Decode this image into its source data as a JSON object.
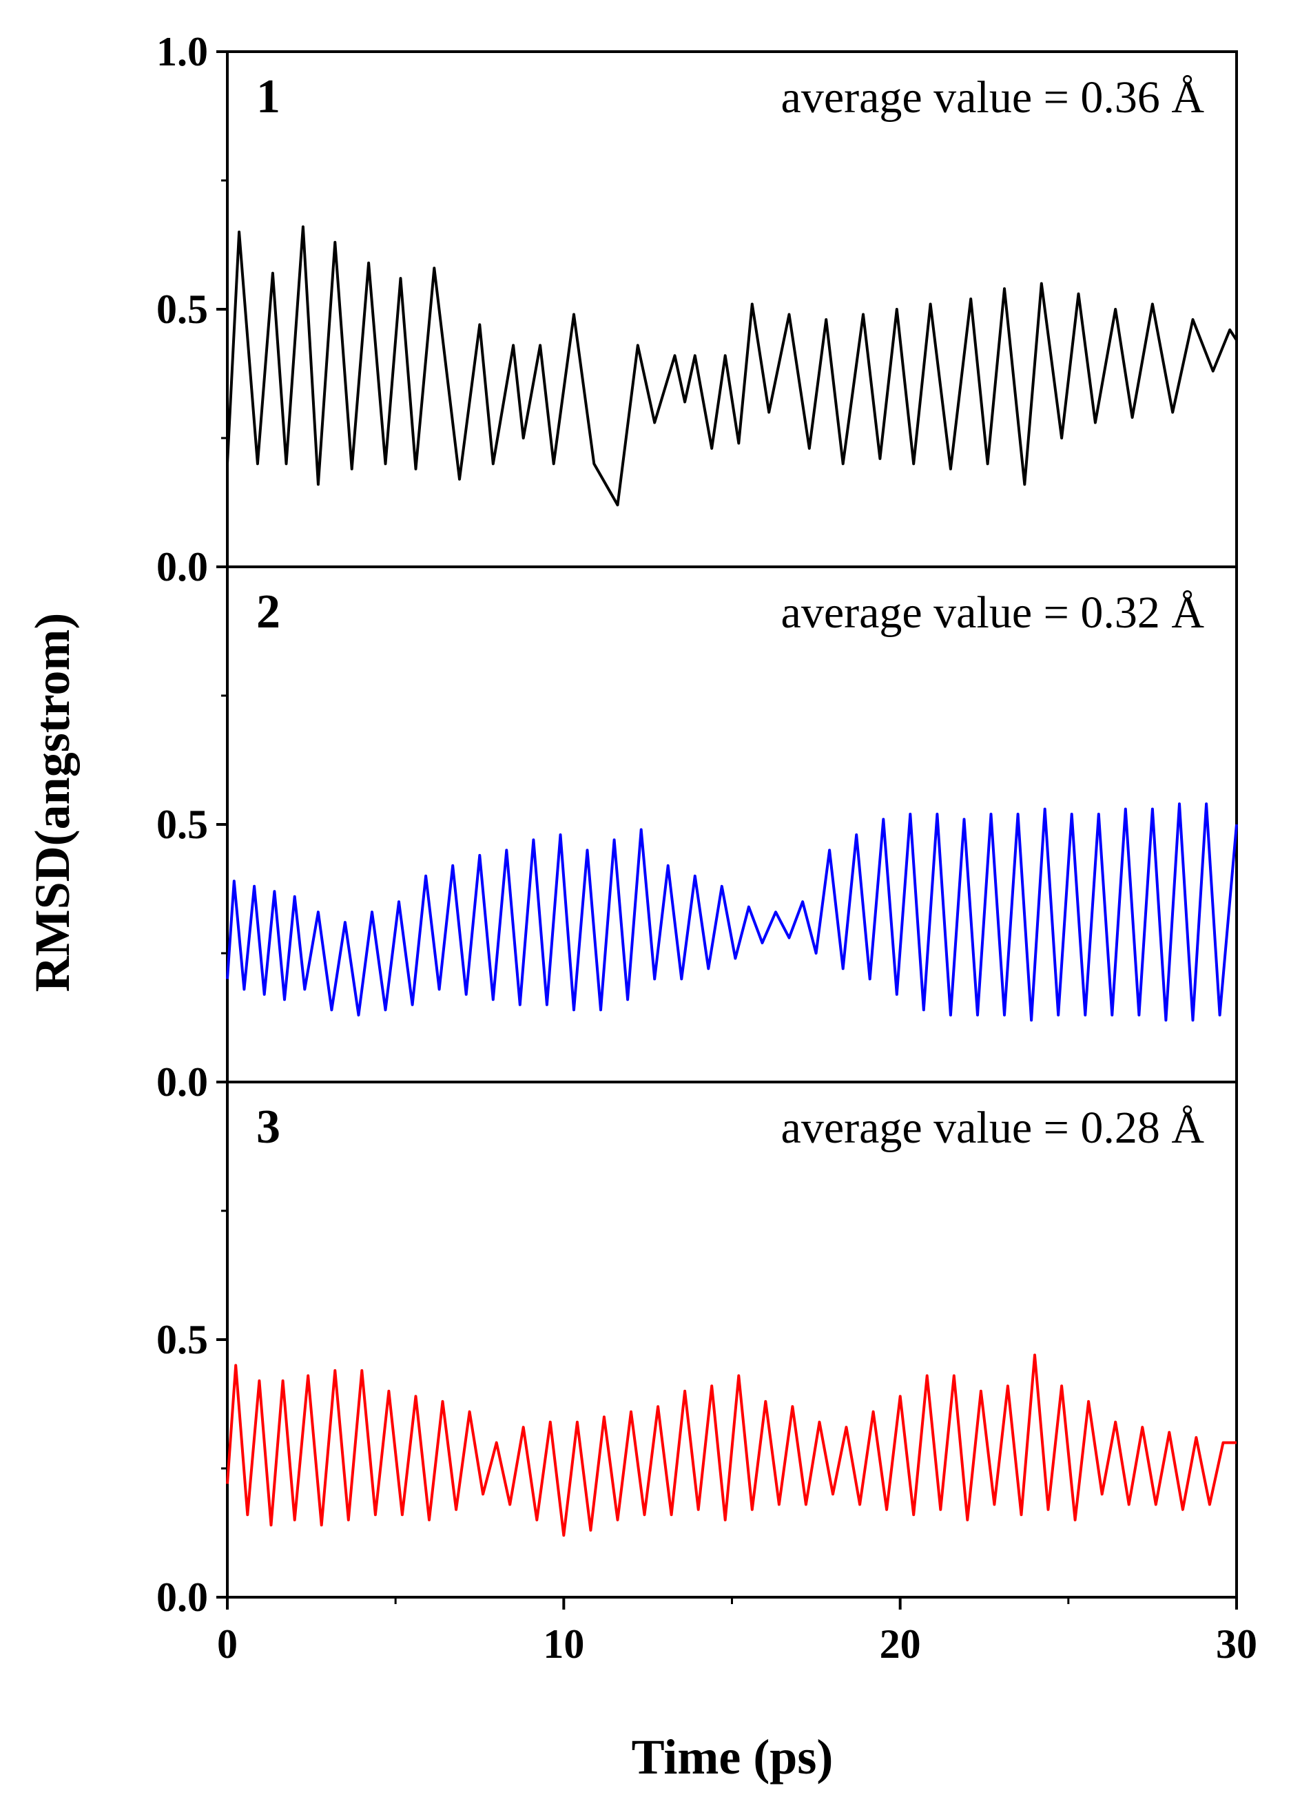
{
  "chart_data": {
    "type": "line",
    "title": "",
    "xlabel": "Time (ps)",
    "ylabel": "RMSD(angstrom)",
    "xlim": [
      0,
      30
    ],
    "x_ticks": [
      0,
      10,
      20,
      30
    ],
    "x_tick_labels": [
      "0",
      "10",
      "20",
      "30"
    ],
    "grid": false,
    "panels": [
      {
        "label": "1",
        "annotation": "average value = 0.36 Å",
        "color": "#000000",
        "ylim": [
          0.0,
          1.0
        ],
        "y_ticks": [
          0.0,
          0.5,
          1.0
        ],
        "y_tick_labels": [
          "0.0",
          "0.5",
          "1.0"
        ],
        "series": {
          "name": "1",
          "x": [
            0,
            0.35,
            0.9,
            1.35,
            1.75,
            2.25,
            2.7,
            3.2,
            3.7,
            4.2,
            4.7,
            5.15,
            5.6,
            6.15,
            6.9,
            7.5,
            7.9,
            8.5,
            8.8,
            9.3,
            9.7,
            10.3,
            10.9,
            11.6,
            12.2,
            12.7,
            13.3,
            13.6,
            13.9,
            14.4,
            14.8,
            15.2,
            15.6,
            16.1,
            16.7,
            17.3,
            17.8,
            18.3,
            18.9,
            19.4,
            19.9,
            20.4,
            20.9,
            21.5,
            22.1,
            22.6,
            23.1,
            23.7,
            24.2,
            24.8,
            25.3,
            25.8,
            26.4,
            26.9,
            27.5,
            28.1,
            28.7,
            29.3,
            29.8,
            30
          ],
          "y": [
            0.2,
            0.65,
            0.2,
            0.57,
            0.2,
            0.66,
            0.16,
            0.63,
            0.19,
            0.59,
            0.2,
            0.56,
            0.19,
            0.58,
            0.17,
            0.47,
            0.2,
            0.43,
            0.25,
            0.43,
            0.2,
            0.49,
            0.2,
            0.12,
            0.43,
            0.28,
            0.41,
            0.32,
            0.41,
            0.23,
            0.41,
            0.24,
            0.51,
            0.3,
            0.49,
            0.23,
            0.48,
            0.2,
            0.49,
            0.21,
            0.5,
            0.2,
            0.51,
            0.19,
            0.52,
            0.2,
            0.54,
            0.16,
            0.55,
            0.25,
            0.53,
            0.28,
            0.5,
            0.29,
            0.51,
            0.3,
            0.48,
            0.38,
            0.46,
            0.44
          ]
        }
      },
      {
        "label": "2",
        "annotation": "average value = 0.32 Å",
        "color": "#0000ff",
        "ylim": [
          0.0,
          1.0
        ],
        "y_ticks": [
          0.0,
          0.5,
          1.0
        ],
        "y_tick_labels": [
          "0.0",
          "0.5",
          ""
        ],
        "series": {
          "name": "2",
          "x": [
            0,
            0.2,
            0.5,
            0.8,
            1.1,
            1.4,
            1.7,
            2.0,
            2.3,
            2.7,
            3.1,
            3.5,
            3.9,
            4.3,
            4.7,
            5.1,
            5.5,
            5.9,
            6.3,
            6.7,
            7.1,
            7.5,
            7.9,
            8.3,
            8.7,
            9.1,
            9.5,
            9.9,
            10.3,
            10.7,
            11.1,
            11.5,
            11.9,
            12.3,
            12.7,
            13.1,
            13.5,
            13.9,
            14.3,
            14.7,
            15.1,
            15.5,
            15.9,
            16.3,
            16.7,
            17.1,
            17.5,
            17.9,
            18.3,
            18.7,
            19.1,
            19.5,
            19.9,
            20.3,
            20.7,
            21.1,
            21.5,
            21.9,
            22.3,
            22.7,
            23.1,
            23.5,
            23.9,
            24.3,
            24.7,
            25.1,
            25.5,
            25.9,
            26.3,
            26.7,
            27.1,
            27.5,
            27.9,
            28.3,
            28.7,
            29.1,
            29.5,
            30
          ],
          "y": [
            0.2,
            0.39,
            0.18,
            0.38,
            0.17,
            0.37,
            0.16,
            0.36,
            0.18,
            0.33,
            0.14,
            0.31,
            0.13,
            0.33,
            0.14,
            0.35,
            0.15,
            0.4,
            0.18,
            0.42,
            0.17,
            0.44,
            0.16,
            0.45,
            0.15,
            0.47,
            0.15,
            0.48,
            0.14,
            0.45,
            0.14,
            0.47,
            0.16,
            0.49,
            0.2,
            0.42,
            0.2,
            0.4,
            0.22,
            0.38,
            0.24,
            0.34,
            0.27,
            0.33,
            0.28,
            0.35,
            0.25,
            0.45,
            0.22,
            0.48,
            0.2,
            0.51,
            0.17,
            0.52,
            0.14,
            0.52,
            0.13,
            0.51,
            0.13,
            0.52,
            0.13,
            0.52,
            0.12,
            0.53,
            0.13,
            0.52,
            0.13,
            0.52,
            0.13,
            0.53,
            0.13,
            0.53,
            0.12,
            0.54,
            0.12,
            0.54,
            0.13,
            0.5
          ]
        }
      },
      {
        "label": "3",
        "annotation": "average value = 0.28 Å",
        "color": "#ff0000",
        "ylim": [
          0.0,
          1.0
        ],
        "y_ticks": [
          0.0,
          0.5,
          1.0
        ],
        "y_tick_labels": [
          "0.0",
          "0.5",
          ""
        ],
        "series": {
          "name": "3",
          "x": [
            0,
            0.25,
            0.6,
            0.95,
            1.3,
            1.65,
            2.0,
            2.4,
            2.8,
            3.2,
            3.6,
            4.0,
            4.4,
            4.8,
            5.2,
            5.6,
            6.0,
            6.4,
            6.8,
            7.2,
            7.6,
            8.0,
            8.4,
            8.8,
            9.2,
            9.6,
            10.0,
            10.4,
            10.8,
            11.2,
            11.6,
            12.0,
            12.4,
            12.8,
            13.2,
            13.6,
            14.0,
            14.4,
            14.8,
            15.2,
            15.6,
            16.0,
            16.4,
            16.8,
            17.2,
            17.6,
            18.0,
            18.4,
            18.8,
            19.2,
            19.6,
            20.0,
            20.4,
            20.8,
            21.2,
            21.6,
            22.0,
            22.4,
            22.8,
            23.2,
            23.6,
            24.0,
            24.4,
            24.8,
            25.2,
            25.6,
            26.0,
            26.4,
            26.8,
            27.2,
            27.6,
            28.0,
            28.4,
            28.8,
            29.2,
            29.6,
            30
          ],
          "y": [
            0.22,
            0.45,
            0.16,
            0.42,
            0.14,
            0.42,
            0.15,
            0.43,
            0.14,
            0.44,
            0.15,
            0.44,
            0.16,
            0.4,
            0.16,
            0.39,
            0.15,
            0.38,
            0.17,
            0.36,
            0.2,
            0.3,
            0.18,
            0.33,
            0.15,
            0.34,
            0.12,
            0.34,
            0.13,
            0.35,
            0.15,
            0.36,
            0.16,
            0.37,
            0.16,
            0.4,
            0.17,
            0.41,
            0.15,
            0.43,
            0.17,
            0.38,
            0.18,
            0.37,
            0.18,
            0.34,
            0.2,
            0.33,
            0.18,
            0.36,
            0.17,
            0.39,
            0.16,
            0.43,
            0.17,
            0.43,
            0.15,
            0.4,
            0.18,
            0.41,
            0.16,
            0.47,
            0.17,
            0.41,
            0.15,
            0.38,
            0.2,
            0.34,
            0.18,
            0.33,
            0.18,
            0.32,
            0.17,
            0.31,
            0.18,
            0.3,
            0.3
          ]
        }
      }
    ]
  }
}
